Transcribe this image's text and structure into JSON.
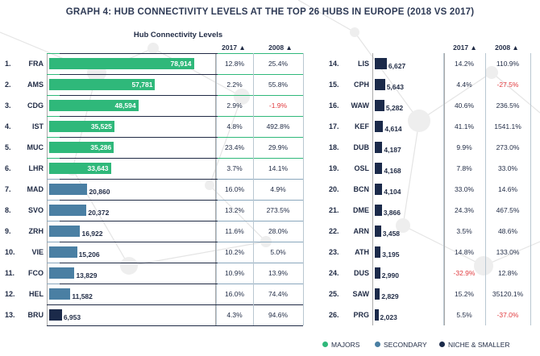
{
  "title": "GRAPH 4: HUB CONNECTIVITY LEVELS AT THE TOP 26 HUBS IN EUROPE (2018 VS 2017)",
  "subtitle": "Hub Connectivity Levels",
  "headers": {
    "col2017": "2017 ▲",
    "col2018": "2008 ▲"
  },
  "colors": {
    "majors": "#2fb87a",
    "secondary": "#4a7fa3",
    "niche": "#1b2a4a",
    "negative": "#e03a3e"
  },
  "legend": [
    {
      "label": "MAJORS",
      "color": "#2fb87a"
    },
    {
      "label": "SECONDARY",
      "color": "#4a7fa3"
    },
    {
      "label": "NICHE & SMALLER",
      "color": "#1b2a4a"
    }
  ],
  "chart_data": {
    "type": "bar",
    "title": "GRAPH 4: HUB CONNECTIVITY LEVELS AT THE TOP 26 HUBS IN EUROPE (2018 VS 2017)",
    "subtitle": "Hub Connectivity Levels",
    "xmax": 80000,
    "series": [
      {
        "name": "MAJORS"
      },
      {
        "name": "SECONDARY"
      },
      {
        "name": "NICHE & SMALLER"
      }
    ],
    "left": [
      {
        "rank": "1.",
        "code": "FRA",
        "value": 78914,
        "value_label": "78,914",
        "group": "majors",
        "y2017": "12.8%",
        "y2018": "25.4%"
      },
      {
        "rank": "2.",
        "code": "AMS",
        "value": 57781,
        "value_label": "57,781",
        "group": "majors",
        "y2017": "2.2%",
        "y2018": "55.8%"
      },
      {
        "rank": "3.",
        "code": "CDG",
        "value": 48594,
        "value_label": "48,594",
        "group": "majors",
        "y2017": "2.9%",
        "y2018": "-1.9%"
      },
      {
        "rank": "4.",
        "code": "IST",
        "value": 35525,
        "value_label": "35,525",
        "group": "majors",
        "y2017": "4.8%",
        "y2018": "492.8%"
      },
      {
        "rank": "5.",
        "code": "MUC",
        "value": 35286,
        "value_label": "35,286",
        "group": "majors",
        "y2017": "23.4%",
        "y2018": "29.9%"
      },
      {
        "rank": "6.",
        "code": "LHR",
        "value": 33643,
        "value_label": "33,643",
        "group": "majors",
        "y2017": "3.7%",
        "y2018": "14.1%"
      },
      {
        "rank": "7.",
        "code": "MAD",
        "value": 20860,
        "value_label": "20,860",
        "group": "secondary",
        "y2017": "16.0%",
        "y2018": "4.9%"
      },
      {
        "rank": "8.",
        "code": "SVO",
        "value": 20372,
        "value_label": "20,372",
        "group": "secondary",
        "y2017": "13.2%",
        "y2018": "273.5%"
      },
      {
        "rank": "9.",
        "code": "ZRH",
        "value": 16922,
        "value_label": "16,922",
        "group": "secondary",
        "y2017": "11.6%",
        "y2018": "28.0%"
      },
      {
        "rank": "10.",
        "code": "VIE",
        "value": 15206,
        "value_label": "15,206",
        "group": "secondary",
        "y2017": "10.2%",
        "y2018": "5.0%"
      },
      {
        "rank": "11.",
        "code": "FCO",
        "value": 13829,
        "value_label": "13,829",
        "group": "secondary",
        "y2017": "10.9%",
        "y2018": "13.9%"
      },
      {
        "rank": "12.",
        "code": "HEL",
        "value": 11582,
        "value_label": "11,582",
        "group": "secondary",
        "y2017": "16.0%",
        "y2018": "74.4%"
      },
      {
        "rank": "13.",
        "code": "BRU",
        "value": 6953,
        "value_label": "6,953",
        "group": "niche",
        "y2017": "4.3%",
        "y2018": "94.6%"
      }
    ],
    "right": [
      {
        "rank": "14.",
        "code": "LIS",
        "value": 6627,
        "value_label": "6,627",
        "group": "niche",
        "y2017": "14.2%",
        "y2018": "110.9%"
      },
      {
        "rank": "15.",
        "code": "CPH",
        "value": 5643,
        "value_label": "5,643",
        "group": "niche",
        "y2017": "4.4%",
        "y2018": "-27.5%"
      },
      {
        "rank": "16.",
        "code": "WAW",
        "value": 5282,
        "value_label": "5,282",
        "group": "niche",
        "y2017": "40.6%",
        "y2018": "236.5%"
      },
      {
        "rank": "17.",
        "code": "KEF",
        "value": 4614,
        "value_label": "4,614",
        "group": "niche",
        "y2017": "41.1%",
        "y2018": "1541.1%"
      },
      {
        "rank": "18.",
        "code": "DUB",
        "value": 4187,
        "value_label": "4,187",
        "group": "niche",
        "y2017": "9.9%",
        "y2018": "273.0%"
      },
      {
        "rank": "19.",
        "code": "OSL",
        "value": 4168,
        "value_label": "4,168",
        "group": "niche",
        "y2017": "7.8%",
        "y2018": "33.0%"
      },
      {
        "rank": "20.",
        "code": "BCN",
        "value": 4104,
        "value_label": "4,104",
        "group": "niche",
        "y2017": "33.0%",
        "y2018": "14.6%"
      },
      {
        "rank": "21.",
        "code": "DME",
        "value": 3866,
        "value_label": "3,866",
        "group": "niche",
        "y2017": "24.3%",
        "y2018": "467.5%"
      },
      {
        "rank": "22.",
        "code": "ARN",
        "value": 3458,
        "value_label": "3,458",
        "group": "niche",
        "y2017": "3.5%",
        "y2018": "48.6%"
      },
      {
        "rank": "23.",
        "code": "ATH",
        "value": 3195,
        "value_label": "3,195",
        "group": "niche",
        "y2017": "14.8%",
        "y2018": "133.0%"
      },
      {
        "rank": "24.",
        "code": "DUS",
        "value": 2990,
        "value_label": "2,990",
        "group": "niche",
        "y2017": "-32.9%",
        "y2018": "12.8%"
      },
      {
        "rank": "25.",
        "code": "SAW",
        "value": 2829,
        "value_label": "2,829",
        "group": "niche",
        "y2017": "15.2%",
        "y2018": "35120.1%"
      },
      {
        "rank": "26.",
        "code": "PRG",
        "value": 2023,
        "value_label": "2,023",
        "group": "niche",
        "y2017": "5.5%",
        "y2018": "-37.0%"
      }
    ]
  }
}
